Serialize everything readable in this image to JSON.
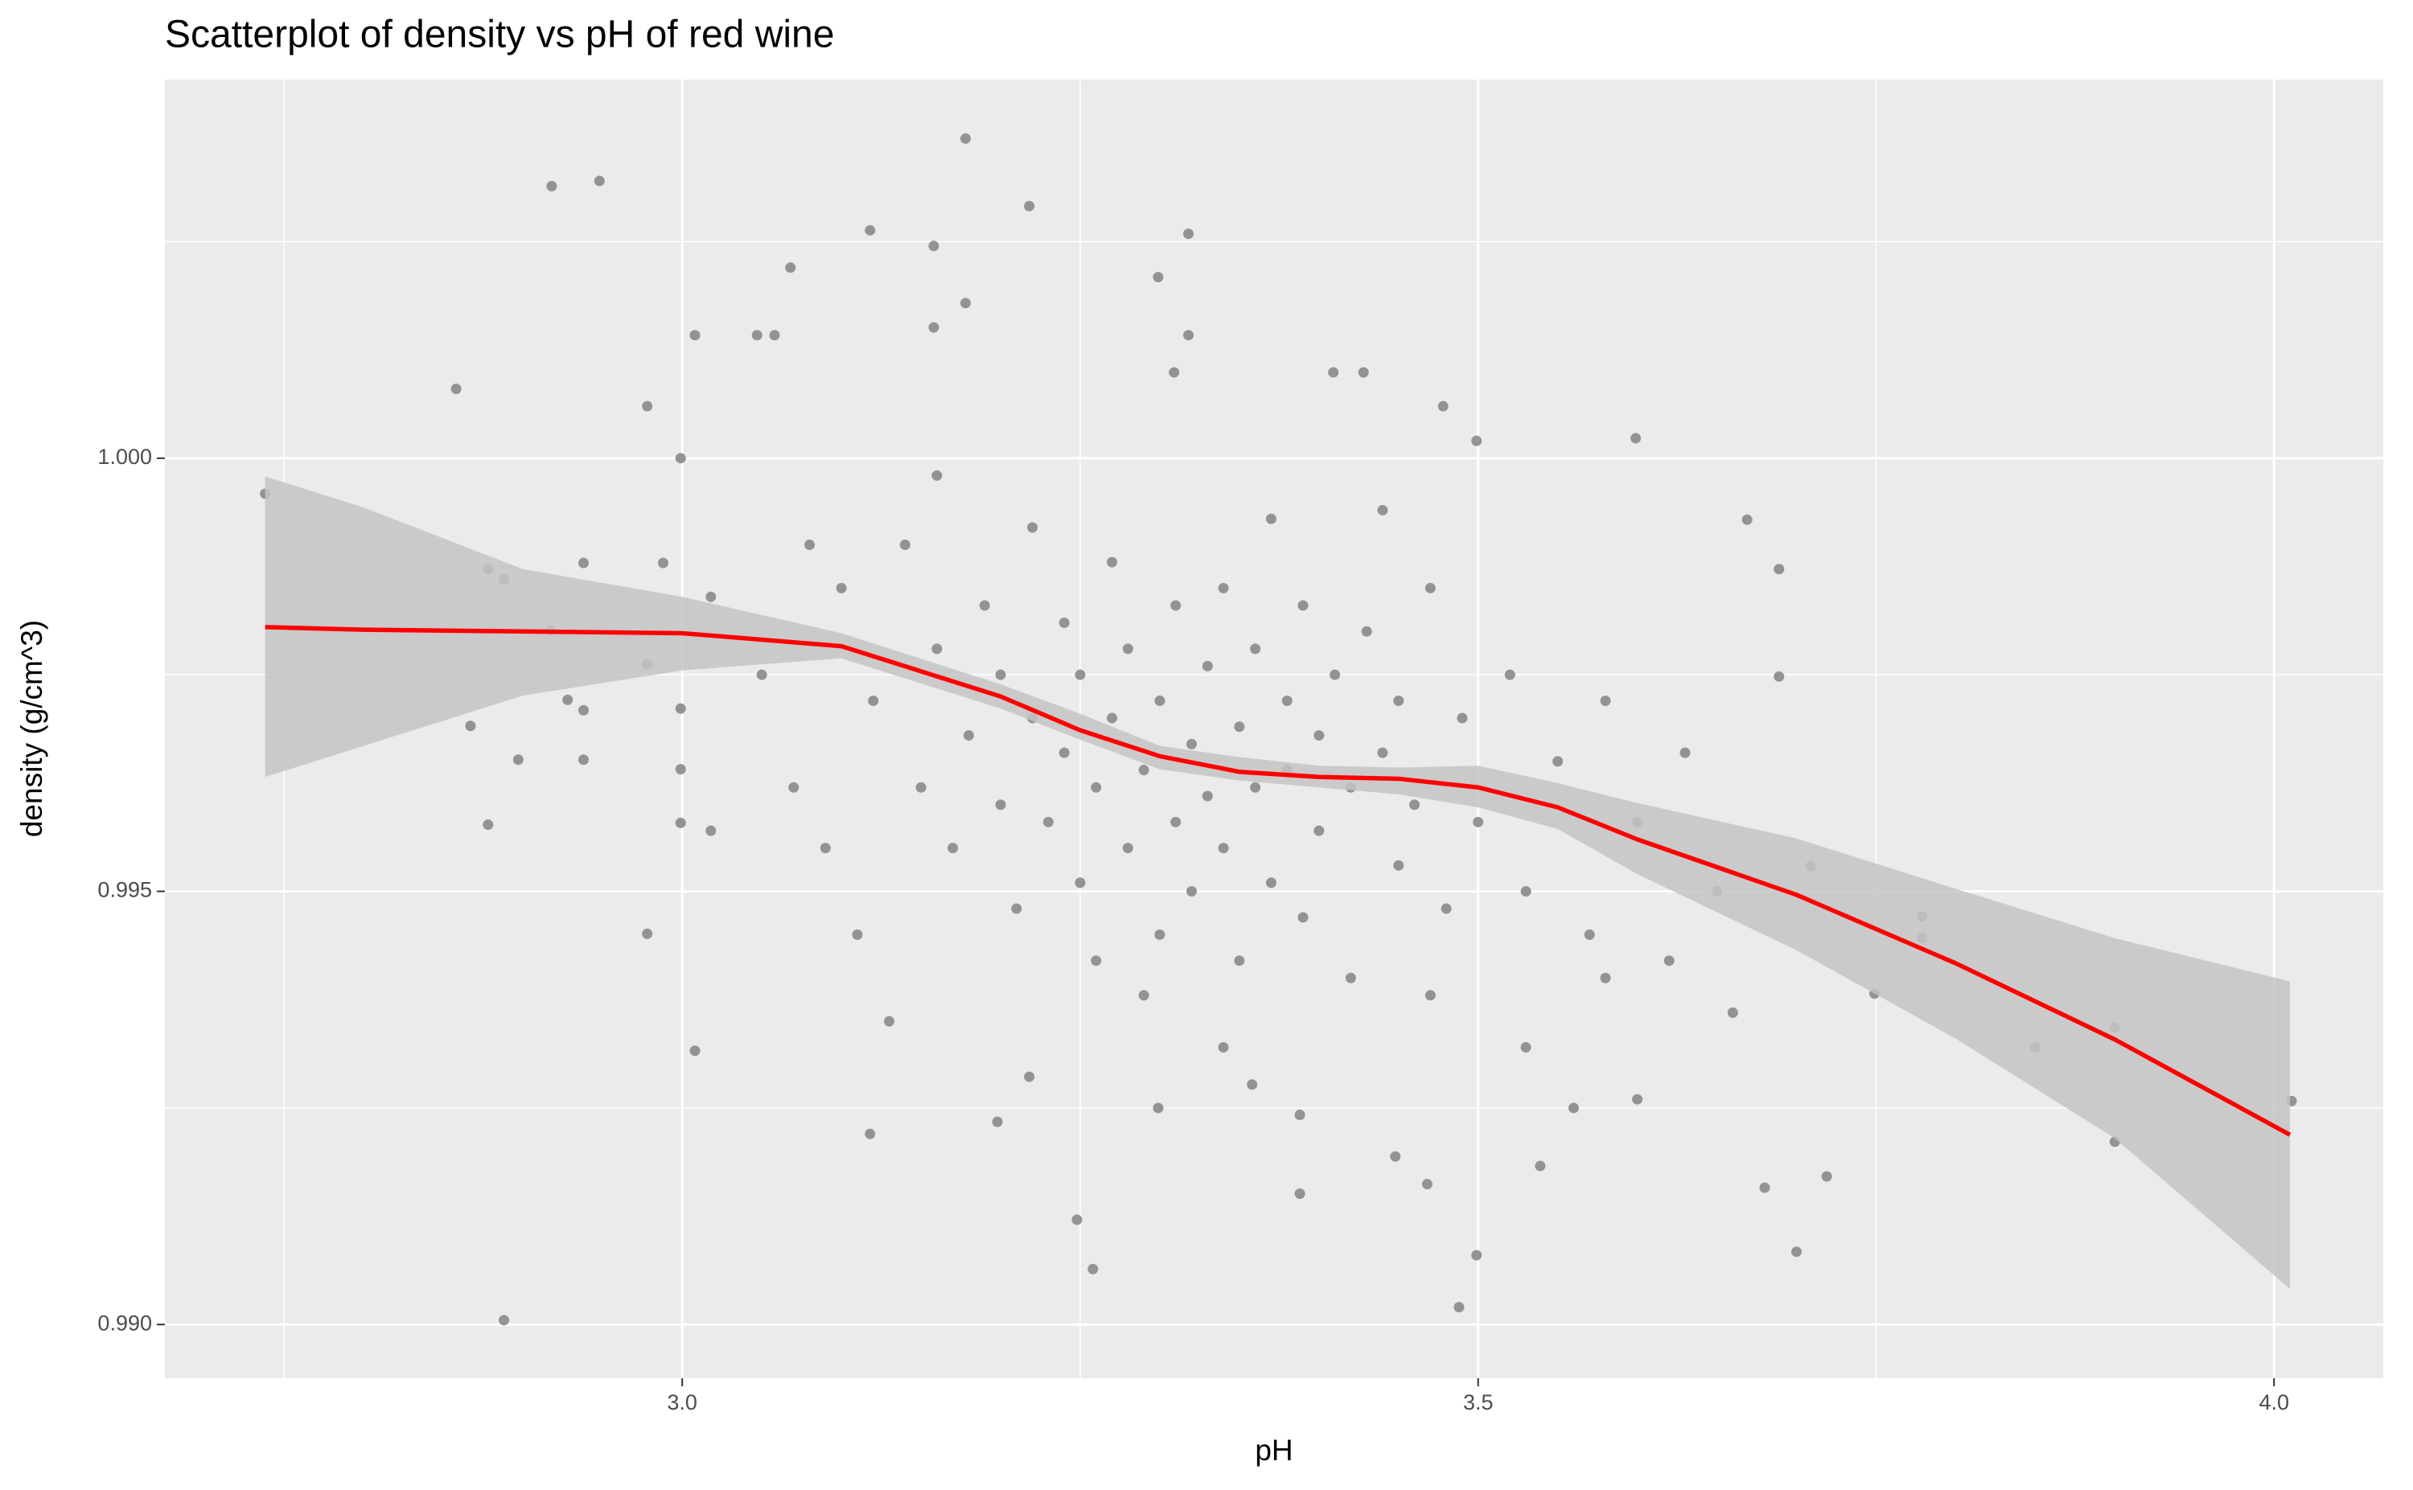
{
  "chart_data": {
    "type": "scatter",
    "title": "Scatterplot of density vs pH of red wine",
    "x_label": "pH",
    "y_label": "density (g/cm^3)",
    "xlim": [
      2.675,
      4.0686
    ],
    "ylim": [
      0.98938,
      1.00437
    ],
    "xticks": [
      {
        "value": 3.0,
        "label": "3.0"
      },
      {
        "value": 3.5,
        "label": "3.5"
      },
      {
        "value": 4.0,
        "label": "4.0"
      }
    ],
    "yticks": [
      {
        "value": 0.99,
        "label": "0.990"
      },
      {
        "value": 0.995,
        "label": "0.995"
      },
      {
        "value": 1.0,
        "label": "1.000"
      }
    ],
    "x_minor_grid": [
      2.75,
      3.25,
      3.75
    ],
    "y_minor_grid": [
      0.9925,
      0.9975,
      1.0025
    ],
    "grid": true,
    "panel_color": "#ebebeb",
    "points": {
      "color": "#939393",
      "x": [
        2.738,
        2.858,
        2.888,
        2.918,
        2.948,
        2.867,
        2.878,
        2.897,
        2.888,
        2.878,
        2.938,
        2.928,
        2.938,
        2.938,
        2.917,
        2.978,
        2.978,
        2.978,
        2.988,
        2.999,
        2.999,
        2.999,
        2.999,
        3.008,
        3.008,
        3.018,
        3.018,
        3.047,
        3.058,
        3.068,
        3.118,
        3.118,
        3.158,
        3.158,
        3.178,
        3.178,
        3.198,
        3.218,
        3.218,
        3.248,
        3.258,
        3.299,
        3.318,
        3.318,
        3.309,
        3.299,
        3.358,
        3.388,
        3.388,
        3.409,
        3.428,
        3.448,
        3.468,
        3.478,
        3.488,
        3.499,
        3.499,
        3.539,
        3.599,
        3.669,
        3.689,
        3.689,
        3.68,
        3.7,
        3.709,
        3.719,
        3.749,
        3.779,
        3.779,
        3.85,
        3.9,
        3.9,
        4.011,
        3.1,
        3.12,
        3.14,
        3.15,
        3.16,
        3.17,
        3.18,
        3.19,
        3.2,
        3.2,
        3.21,
        3.22,
        3.22,
        3.23,
        3.24,
        3.24,
        3.25,
        3.25,
        3.26,
        3.27,
        3.27,
        3.28,
        3.28,
        3.29,
        3.3,
        3.3,
        3.31,
        3.31,
        3.32,
        3.32,
        3.33,
        3.33,
        3.34,
        3.34,
        3.35,
        3.35,
        3.36,
        3.36,
        3.37,
        3.38,
        3.38,
        3.39,
        3.39,
        3.4,
        3.4,
        3.41,
        3.42,
        3.42,
        3.43,
        3.44,
        3.45,
        3.45,
        3.46,
        3.47,
        3.48,
        3.49,
        3.5,
        3.52,
        3.53,
        3.55,
        3.57,
        3.58,
        3.6,
        3.62,
        3.63,
        3.05,
        3.07,
        3.08,
        3.09,
        3.11,
        3.13,
        3.16,
        3.26,
        3.29,
        3.34,
        3.37,
        3.44,
        3.47,
        3.53,
        3.56,
        3.58,
        3.6,
        3.65,
        3.66
      ],
      "y": [
        0.99959,
        1.0008,
        0.99005,
        1.00314,
        1.0032,
        0.99691,
        0.99577,
        0.99652,
        0.9986,
        0.99872,
        0.99879,
        0.99721,
        0.99709,
        0.99652,
        0.99801,
        1.0006,
        0.99451,
        0.99762,
        0.99879,
        1.0,
        0.99711,
        0.99641,
        0.99579,
        0.99316,
        1.00142,
        0.9984,
        0.9957,
        1.00142,
        1.00142,
        1.0022,
        1.00263,
        0.9922,
        1.00245,
        1.00151,
        1.00369,
        1.00179,
        0.99234,
        1.00291,
        0.99286,
        0.99121,
        0.99064,
        1.00209,
        1.00259,
        1.00142,
        1.00099,
        0.9925,
        0.99277,
        0.99151,
        0.99242,
        1.00099,
        1.00099,
        0.99194,
        0.99162,
        1.0006,
        0.9902,
        0.9908,
        1.0002,
        0.99183,
        1.00023,
        0.99929,
        0.99872,
        0.99748,
        0.99158,
        0.99084,
        0.99529,
        0.99171,
        0.99382,
        0.99471,
        0.99446,
        0.9932,
        0.99343,
        0.99211,
        0.99258,
        0.9985,
        0.9972,
        0.999,
        0.9962,
        0.9978,
        0.9955,
        0.9968,
        0.9983,
        0.9975,
        0.996,
        0.9948,
        0.9992,
        0.997,
        0.9958,
        0.9981,
        0.9966,
        0.9951,
        0.9975,
        0.9962,
        0.9988,
        0.997,
        0.9955,
        0.9978,
        0.9964,
        0.9945,
        0.9972,
        0.9983,
        0.9958,
        0.9967,
        0.995,
        0.9976,
        0.9961,
        0.9985,
        0.9955,
        0.9969,
        0.9942,
        0.9978,
        0.9962,
        0.9951,
        0.9972,
        0.9964,
        0.9983,
        0.9947,
        0.9968,
        0.9957,
        0.9975,
        0.9962,
        0.994,
        0.998,
        0.9966,
        0.9953,
        0.9972,
        0.996,
        0.9985,
        0.9948,
        0.997,
        0.9958,
        0.9975,
        0.995,
        0.9965,
        0.9945,
        0.9972,
        0.9958,
        0.9942,
        0.9966,
        0.9975,
        0.9962,
        0.999,
        0.9955,
        0.9945,
        0.9935,
        0.9998,
        0.9942,
        0.9938,
        0.9932,
        0.9993,
        0.9994,
        0.9938,
        0.9932,
        0.9925,
        0.994,
        0.9926,
        0.995,
        0.9936
      ]
    },
    "smooth": {
      "color": "#ff0000",
      "band_color": "#c4c4c4",
      "x": [
        2.738,
        2.8,
        2.9,
        3.0,
        3.1,
        3.2,
        3.25,
        3.3,
        3.35,
        3.4,
        3.45,
        3.5,
        3.55,
        3.6,
        3.7,
        3.8,
        3.9,
        4.01
      ],
      "y": [
        0.99805,
        0.99802,
        0.998,
        0.99798,
        0.99783,
        0.99725,
        0.99686,
        0.99656,
        0.99638,
        0.99632,
        0.9963,
        0.9962,
        0.99597,
        0.9956,
        0.99496,
        0.99417,
        0.99329,
        0.99219
      ],
      "upper": [
        0.99979,
        0.99943,
        0.99872,
        0.9984,
        0.99798,
        0.99739,
        0.99705,
        0.99668,
        0.99655,
        0.99645,
        0.99643,
        0.99645,
        0.99625,
        0.99602,
        0.99561,
        0.99503,
        0.99446,
        0.99396
      ],
      "lower": [
        0.99632,
        0.99668,
        0.99726,
        0.99755,
        0.99769,
        0.99711,
        0.99675,
        0.99641,
        0.99628,
        0.9962,
        0.99612,
        0.99597,
        0.99572,
        0.9952,
        0.99432,
        0.9933,
        0.99215,
        0.99041
      ]
    }
  }
}
